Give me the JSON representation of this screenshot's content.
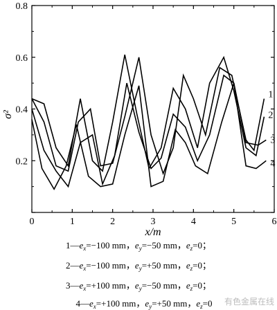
{
  "chart_data": {
    "type": "line",
    "title": "",
    "xlabel": "x/m",
    "ylabel": "σ²",
    "xlim": [
      0,
      6
    ],
    "ylim": [
      0,
      0.8
    ],
    "x_ticks": [
      "0",
      "1",
      "2",
      "3",
      "4",
      "5",
      "6"
    ],
    "y_ticks": [
      "0.2",
      "0.4",
      "0.6",
      "0.8"
    ],
    "grid": false,
    "legend": "below",
    "series": [
      {
        "name": "1",
        "x": [
          0,
          0.3,
          0.6,
          0.9,
          1.15,
          1.45,
          1.7,
          2.0,
          2.3,
          2.65,
          2.95,
          3.25,
          3.5,
          3.75,
          4.0,
          4.3,
          4.65,
          4.95,
          5.3,
          5.5,
          5.75
        ],
        "y": [
          0.44,
          0.35,
          0.18,
          0.16,
          0.35,
          0.4,
          0.18,
          0.19,
          0.37,
          0.6,
          0.3,
          0.15,
          0.25,
          0.53,
          0.44,
          0.3,
          0.56,
          0.53,
          0.28,
          0.24,
          0.44
        ]
      },
      {
        "name": "2",
        "x": [
          0,
          0.3,
          0.6,
          0.9,
          1.2,
          1.5,
          1.75,
          2.0,
          2.3,
          2.6,
          2.9,
          3.2,
          3.5,
          3.8,
          4.1,
          4.4,
          4.75,
          5.0,
          5.3,
          5.55,
          5.75
        ],
        "y": [
          0.44,
          0.42,
          0.25,
          0.18,
          0.44,
          0.2,
          0.16,
          0.35,
          0.61,
          0.38,
          0.17,
          0.25,
          0.48,
          0.4,
          0.25,
          0.5,
          0.6,
          0.47,
          0.25,
          0.22,
          0.37
        ]
      },
      {
        "name": "3",
        "x": [
          0,
          0.3,
          0.6,
          0.9,
          1.2,
          1.5,
          1.75,
          2.05,
          2.35,
          2.65,
          2.95,
          3.2,
          3.5,
          3.8,
          4.1,
          4.4,
          4.75,
          5.0,
          5.3,
          5.6,
          5.8
        ],
        "y": [
          0.4,
          0.24,
          0.16,
          0.1,
          0.27,
          0.3,
          0.11,
          0.22,
          0.5,
          0.31,
          0.17,
          0.21,
          0.38,
          0.33,
          0.2,
          0.3,
          0.53,
          0.5,
          0.27,
          0.26,
          0.28
        ]
      },
      {
        "name": "4",
        "x": [
          0,
          0.25,
          0.55,
          0.85,
          1.1,
          1.4,
          1.7,
          2.0,
          2.3,
          2.65,
          2.95,
          3.25,
          3.55,
          3.8,
          4.05,
          4.35,
          4.7,
          5.0,
          5.3,
          5.55,
          5.8
        ],
        "y": [
          0.36,
          0.17,
          0.09,
          0.18,
          0.34,
          0.14,
          0.1,
          0.11,
          0.3,
          0.49,
          0.1,
          0.12,
          0.32,
          0.27,
          0.18,
          0.15,
          0.35,
          0.5,
          0.18,
          0.17,
          0.2
        ]
      }
    ],
    "series_labels": [
      "1",
      "2",
      "3",
      "4"
    ]
  },
  "legend": [
    {
      "num": "1",
      "ex": "e",
      "ex_sub": "x",
      "ex_val": "=−100 mm，",
      "ey": "e",
      "ey_sub": "y",
      "ey_val": "=−50 mm，",
      "ez": "e",
      "ez_sub": "z",
      "ez_val": "=0；"
    },
    {
      "num": "2",
      "ex": "e",
      "ex_sub": "x",
      "ex_val": "=−100 mm，",
      "ey": "e",
      "ey_sub": "y",
      "ey_val": "=+50 mm，",
      "ez": "e",
      "ez_sub": "z",
      "ez_val": "=0；"
    },
    {
      "num": "3",
      "ex": "e",
      "ex_sub": "x",
      "ex_val": "=+100 mm，",
      "ey": "e",
      "ey_sub": "y",
      "ey_val": "=−50 mm，",
      "ez": "e",
      "ez_sub": "z",
      "ez_val": "=0；"
    },
    {
      "num": "4",
      "ex": "e",
      "ex_sub": "x",
      "ex_val": "=+100 mm，",
      "ey": "e",
      "ey_sub": "y",
      "ey_val": "=+50 mm，",
      "ez": "e",
      "ez_sub": "z",
      "ez_val": "=0"
    }
  ],
  "watermark": "有色金属在线"
}
